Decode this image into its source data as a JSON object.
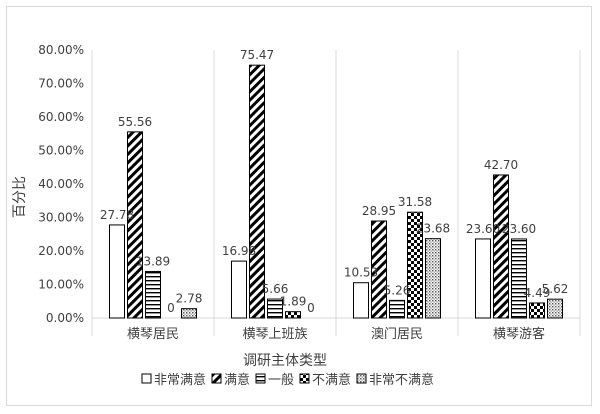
{
  "chart_data": {
    "type": "bar",
    "title": "",
    "xlabel": "调研主体类型",
    "ylabel": "百分比",
    "ylim": [
      0,
      80
    ],
    "yticks": [
      "0.00%",
      "10.00%",
      "20.00%",
      "30.00%",
      "40.00%",
      "50.00%",
      "60.00%",
      "70.00%",
      "80.00%"
    ],
    "categories": [
      "横琴居民",
      "横琴上班族",
      "澳门居民",
      "横琴游客"
    ],
    "series": [
      {
        "name": "非常满意",
        "pattern": "none",
        "values": [
          27.78,
          16.98,
          10.53,
          23.6
        ],
        "labels": [
          "27.78",
          "16.98",
          "10.53",
          "23.60"
        ]
      },
      {
        "name": "满意",
        "pattern": "diagonal",
        "values": [
          55.56,
          75.47,
          28.95,
          42.7
        ],
        "labels": [
          "55.56",
          "75.47",
          "28.95",
          "42.70"
        ]
      },
      {
        "name": "一般",
        "pattern": "horizontal",
        "values": [
          13.89,
          5.66,
          5.26,
          23.6
        ],
        "labels": [
          "13.89",
          "5.66",
          "5.26",
          "23.60"
        ]
      },
      {
        "name": "不满意",
        "pattern": "checker",
        "values": [
          0,
          1.89,
          31.58,
          4.49
        ],
        "labels": [
          "0",
          "1.89",
          "31.58",
          "4.49"
        ]
      },
      {
        "name": "非常不满意",
        "pattern": "dots",
        "values": [
          2.78,
          0,
          23.68,
          5.62
        ],
        "labels": [
          "2.78",
          "0",
          "23.68",
          "5.62"
        ]
      }
    ],
    "legend_position": "bottom",
    "grid": false,
    "colors": {
      "bar_stroke": "#000000",
      "text": "#404040",
      "axis": "#d9d9d9",
      "separator": "#d9d9d9"
    }
  }
}
